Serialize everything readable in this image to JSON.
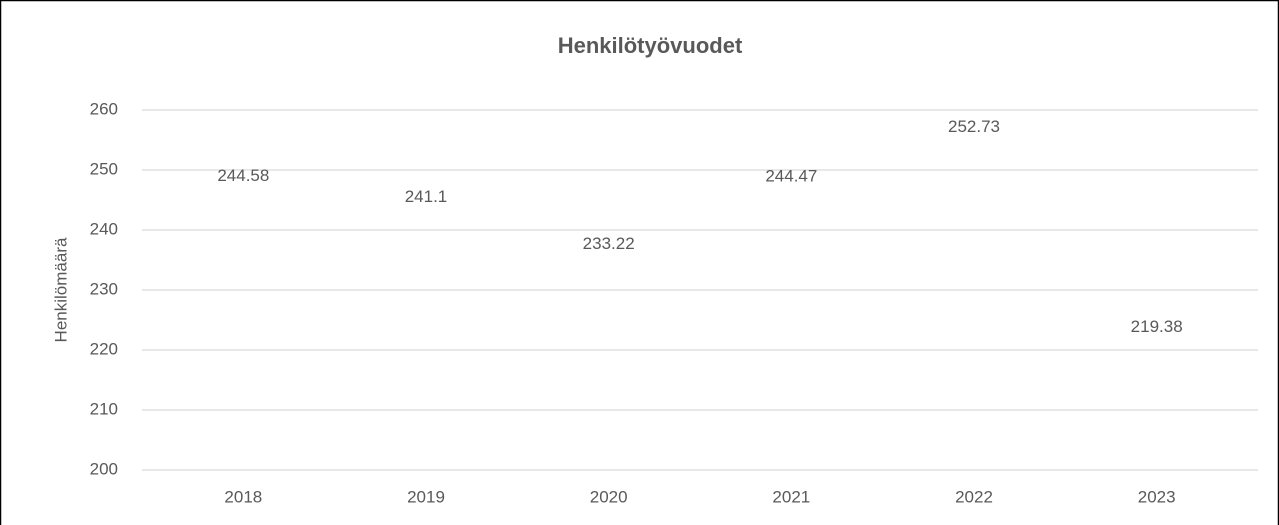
{
  "chart_data": {
    "type": "line",
    "title": "Henkilötyövuodet",
    "y_label": "Henkilömäärä",
    "categories": [
      "2018",
      "2019",
      "2020",
      "2021",
      "2022",
      "2023"
    ],
    "values": [
      244.58,
      241.1,
      233.22,
      244.47,
      252.73,
      219.38
    ],
    "ylim": [
      200,
      260
    ],
    "yticks": [
      200,
      210,
      220,
      230,
      240,
      250,
      260
    ],
    "grid": true
  }
}
